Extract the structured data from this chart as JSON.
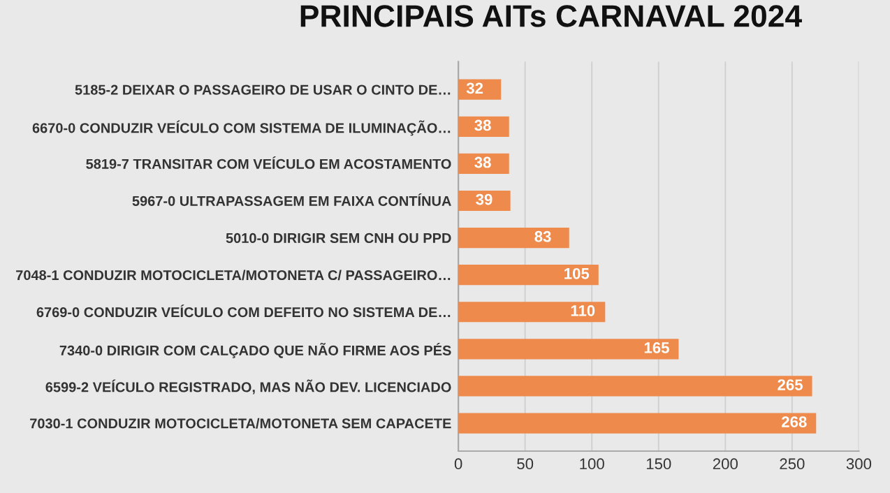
{
  "chart_data": {
    "type": "bar",
    "orientation": "horizontal",
    "title": "PRINCIPAIS AITs CARNAVAL 2024",
    "categories": [
      "5185-2 DEIXAR O PASSAGEIRO DE USAR O CINTO DE…",
      "6670-0 CONDUZIR VEÍCULO COM SISTEMA DE ILUMINAÇÃO…",
      "5819-7 TRANSITAR COM VEÍCULO EM ACOSTAMENTO",
      "5967-0 ULTRAPASSAGEM EM FAIXA CONTÍNUA",
      "5010-0 DIRIGIR SEM CNH OU PPD",
      "7048-1 CONDUZIR MOTOCICLETA/MOTONETA C/ PASSAGEIRO…",
      "6769-0 CONDUZIR VEÍCULO COM DEFEITO NO SISTEMA DE…",
      "7340-0 DIRIGIR COM CALÇADO QUE NÃO FIRME AOS PÉS",
      "6599-2 VEÍCULO REGISTRADO, MAS NÃO DEV. LICENCIADO",
      "7030-1 CONDUZIR MOTOCICLETA/MOTONETA SEM CAPACETE"
    ],
    "values": [
      32,
      38,
      38,
      39,
      83,
      105,
      110,
      165,
      265,
      268
    ],
    "color": "#ee8a4c",
    "xlim": [
      0,
      300
    ],
    "xticks": [
      0,
      50,
      100,
      150,
      200,
      250,
      300
    ],
    "grid": "x",
    "data_labels": true
  }
}
